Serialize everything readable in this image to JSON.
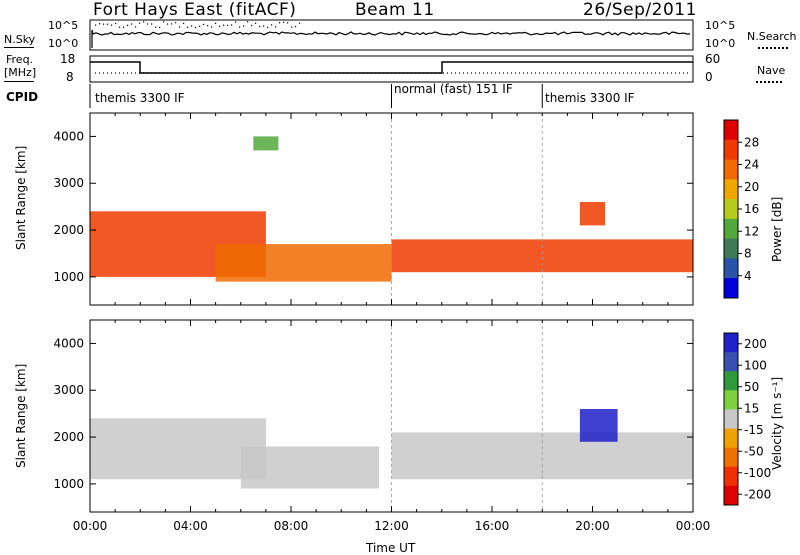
{
  "header": {
    "title": "Fort Hays East (fitACF)",
    "beam": "Beam 11",
    "date": "26/Sep/2011"
  },
  "top_panels": {
    "nsky_label": "N.Sky",
    "nsearch_label": "N.Search",
    "noise_ticks": [
      "10^5",
      "10^0"
    ],
    "freq_label": "Freq.",
    "freq_unit": "[MHz]",
    "freq_ticks": [
      "18",
      "8"
    ],
    "nave_label": "Nave",
    "nave_ticks": [
      "60",
      "0"
    ],
    "cpid_label": "CPID",
    "cpid_segments": [
      {
        "label": "themis 3300 IF",
        "start_hour": 0
      },
      {
        "label": "normal (fast) 151 IF",
        "start_hour": 12
      },
      {
        "label": "themis 3300 IF",
        "start_hour": 18
      }
    ]
  },
  "colors": {
    "power_scale": [
      "#0000dd",
      "#2a52a8",
      "#3e7a5a",
      "#52a83c",
      "#b6cc1a",
      "#f0a800",
      "#f06a00",
      "#f03a00",
      "#e00000"
    ],
    "velocity_scale": [
      "#2020c8",
      "#3a4fb0",
      "#2e9a3a",
      "#7ed040",
      "#c8c8c8",
      "#f0a000",
      "#f07000",
      "#f03000",
      "#e00000"
    ]
  },
  "chart_data": [
    {
      "type": "heatmap",
      "ylabel": "Slant Range [km]",
      "xlabel": "Time UT",
      "xlim": [
        0,
        24
      ],
      "ylim": [
        400,
        4500
      ],
      "x_tick_labels": [
        "00:00",
        "04:00",
        "08:00",
        "12:00",
        "16:00",
        "20:00",
        "00:00"
      ],
      "y_ticks": [
        1000,
        2000,
        3000,
        4000
      ],
      "colorbar_label": "Power [dB]",
      "colorbar_ticks": [
        "4",
        "8",
        "12",
        "16",
        "20",
        "24",
        "28"
      ],
      "colorbar_range": [
        0,
        30
      ],
      "features": [
        {
          "time_range": [
            0,
            7
          ],
          "range_km": [
            1000,
            2400
          ],
          "power_db": 24
        },
        {
          "time_range": [
            5,
            12
          ],
          "range_km": [
            900,
            1700
          ],
          "power_db": 20
        },
        {
          "time_range": [
            12,
            24
          ],
          "range_km": [
            1100,
            1800
          ],
          "power_db": 26
        },
        {
          "time_range": [
            6.5,
            7.5
          ],
          "range_km": [
            3700,
            4000
          ],
          "power_db": 10
        },
        {
          "time_range": [
            19.5,
            20.5
          ],
          "range_km": [
            2100,
            2600
          ],
          "power_db": 24
        }
      ]
    },
    {
      "type": "heatmap",
      "ylabel": "Slant Range [km]",
      "xlabel": "Time UT",
      "xlim": [
        0,
        24
      ],
      "ylim": [
        400,
        4500
      ],
      "x_tick_labels": [
        "00:00",
        "04:00",
        "08:00",
        "12:00",
        "16:00",
        "20:00",
        "00:00"
      ],
      "y_ticks": [
        1000,
        2000,
        3000,
        4000
      ],
      "colorbar_label": "Velocity [m s⁻¹]",
      "colorbar_ticks": [
        "200",
        "100",
        "50",
        "15",
        "-15",
        "-50",
        "-100",
        "-200"
      ],
      "colorbar_range": [
        -250,
        250
      ],
      "features": [
        {
          "time_range": [
            0,
            7
          ],
          "range_km": [
            1100,
            2400
          ],
          "velocity": 0
        },
        {
          "time_range": [
            6,
            11.5
          ],
          "range_km": [
            900,
            1800
          ],
          "velocity": 20
        },
        {
          "time_range": [
            12,
            24
          ],
          "range_km": [
            1100,
            2100
          ],
          "velocity": 0
        },
        {
          "time_range": [
            19.5,
            21
          ],
          "range_km": [
            1900,
            2600
          ],
          "velocity": 220
        }
      ]
    }
  ]
}
